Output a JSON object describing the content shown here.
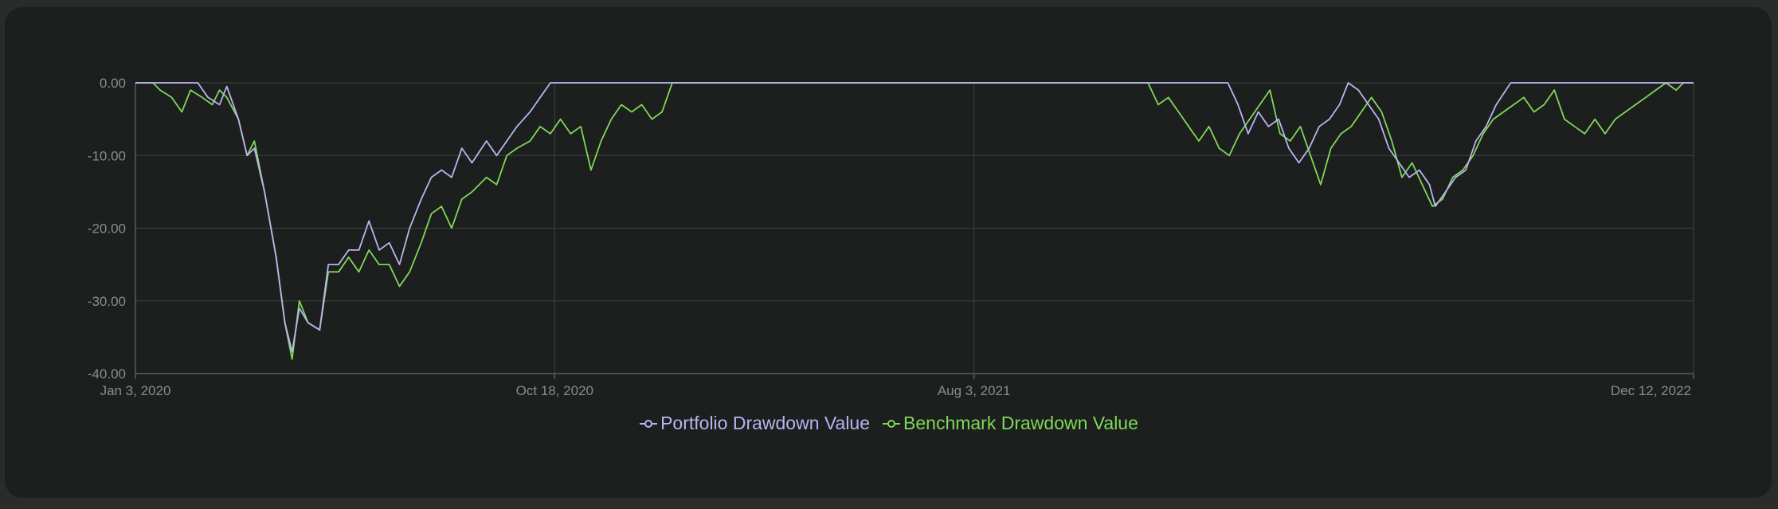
{
  "colors": {
    "background": "#1d1e1e",
    "grid": "#3a3c3c",
    "axis": "#5a5c5c",
    "portfolio": "#b9b4f0",
    "benchmark": "#7ed957",
    "tick_text": "#8a8c8c"
  },
  "legend_items": [
    {
      "name": "Portfolio Drawdown Value",
      "color": "#b9b4f0",
      "icon": "circle-line-marker-icon"
    },
    {
      "name": "Benchmark Drawdown Value",
      "color": "#7ed957",
      "icon": "circle-line-marker-icon"
    }
  ],
  "chart_data": {
    "type": "line",
    "title": "",
    "xlabel": "",
    "ylabel": "",
    "x_range": [
      "2020-01-03",
      "2022-12-12"
    ],
    "ylim": [
      -40,
      0
    ],
    "y_ticks": [
      "0.00",
      "-10.00",
      "-20.00",
      "-30.00",
      "-40.00"
    ],
    "x_ticks": [
      {
        "date": "2020-01-03",
        "label": "Jan 3, 2020"
      },
      {
        "date": "2020-10-18",
        "label": "Oct 18, 2020"
      },
      {
        "date": "2021-08-03",
        "label": "Aug 3, 2021"
      },
      {
        "date": "2022-12-12",
        "label": "Dec 12, 2022"
      }
    ],
    "grid": true,
    "legend_position": "bottom",
    "series": [
      {
        "name": "Portfolio Drawdown Value",
        "color": "#b9b4f0",
        "points": [
          [
            "2020-01-03",
            0
          ],
          [
            "2020-02-15",
            0
          ],
          [
            "2020-02-22",
            -2
          ],
          [
            "2020-03-01",
            -3
          ],
          [
            "2020-03-06",
            -0.5
          ],
          [
            "2020-03-14",
            -5
          ],
          [
            "2020-03-20",
            -10
          ],
          [
            "2020-03-25",
            -9
          ],
          [
            "2020-04-01",
            -15
          ],
          [
            "2020-04-09",
            -24
          ],
          [
            "2020-04-15",
            -33
          ],
          [
            "2020-04-20",
            -37
          ],
          [
            "2020-04-25",
            -31
          ],
          [
            "2020-05-01",
            -33
          ],
          [
            "2020-05-09",
            -34
          ],
          [
            "2020-05-15",
            -25
          ],
          [
            "2020-05-22",
            -25
          ],
          [
            "2020-05-29",
            -23
          ],
          [
            "2020-06-05",
            -23
          ],
          [
            "2020-06-12",
            -19
          ],
          [
            "2020-06-19",
            -23
          ],
          [
            "2020-06-26",
            -22
          ],
          [
            "2020-07-03",
            -25
          ],
          [
            "2020-07-10",
            -20
          ],
          [
            "2020-07-18",
            -16
          ],
          [
            "2020-07-25",
            -13
          ],
          [
            "2020-08-01",
            -12
          ],
          [
            "2020-08-08",
            -13
          ],
          [
            "2020-08-15",
            -9
          ],
          [
            "2020-08-22",
            -11
          ],
          [
            "2020-09-01",
            -8
          ],
          [
            "2020-09-08",
            -10
          ],
          [
            "2020-09-15",
            -8
          ],
          [
            "2020-09-22",
            -6
          ],
          [
            "2020-10-01",
            -4
          ],
          [
            "2020-10-08",
            -2
          ],
          [
            "2020-10-15",
            0
          ],
          [
            "2021-03-15",
            0
          ],
          [
            "2022-01-25",
            0
          ],
          [
            "2022-02-01",
            -3
          ],
          [
            "2022-02-08",
            -7
          ],
          [
            "2022-02-15",
            -4
          ],
          [
            "2022-02-22",
            -6
          ],
          [
            "2022-03-01",
            -5
          ],
          [
            "2022-03-08",
            -9
          ],
          [
            "2022-03-15",
            -11
          ],
          [
            "2022-03-22",
            -9
          ],
          [
            "2022-03-29",
            -6
          ],
          [
            "2022-04-05",
            -5
          ],
          [
            "2022-04-12",
            -3
          ],
          [
            "2022-04-18",
            0
          ],
          [
            "2022-04-25",
            -1
          ],
          [
            "2022-05-02",
            -3
          ],
          [
            "2022-05-09",
            -5
          ],
          [
            "2022-05-16",
            -9
          ],
          [
            "2022-05-23",
            -11
          ],
          [
            "2022-05-30",
            -13
          ],
          [
            "2022-06-06",
            -12
          ],
          [
            "2022-06-13",
            -14
          ],
          [
            "2022-06-17",
            -17
          ],
          [
            "2022-06-24",
            -15
          ],
          [
            "2022-07-01",
            -13
          ],
          [
            "2022-07-08",
            -12
          ],
          [
            "2022-07-15",
            -8
          ],
          [
            "2022-07-22",
            -6
          ],
          [
            "2022-07-29",
            -3
          ],
          [
            "2022-08-08",
            0
          ],
          [
            "2022-12-12",
            0
          ]
        ]
      },
      {
        "name": "Benchmark Drawdown Value",
        "color": "#7ed957",
        "points": [
          [
            "2020-01-03",
            0
          ],
          [
            "2020-01-15",
            0
          ],
          [
            "2020-01-20",
            -1
          ],
          [
            "2020-01-28",
            -2
          ],
          [
            "2020-02-04",
            -4
          ],
          [
            "2020-02-10",
            -1
          ],
          [
            "2020-02-18",
            -2
          ],
          [
            "2020-02-25",
            -3
          ],
          [
            "2020-03-01",
            -1
          ],
          [
            "2020-03-06",
            -2
          ],
          [
            "2020-03-14",
            -5
          ],
          [
            "2020-03-20",
            -10
          ],
          [
            "2020-03-25",
            -8
          ],
          [
            "2020-04-01",
            -15
          ],
          [
            "2020-04-09",
            -24
          ],
          [
            "2020-04-15",
            -33
          ],
          [
            "2020-04-20",
            -38
          ],
          [
            "2020-04-25",
            -30
          ],
          [
            "2020-05-01",
            -33
          ],
          [
            "2020-05-09",
            -34
          ],
          [
            "2020-05-15",
            -26
          ],
          [
            "2020-05-22",
            -26
          ],
          [
            "2020-05-29",
            -24
          ],
          [
            "2020-06-05",
            -26
          ],
          [
            "2020-06-12",
            -23
          ],
          [
            "2020-06-19",
            -25
          ],
          [
            "2020-06-26",
            -25
          ],
          [
            "2020-07-03",
            -28
          ],
          [
            "2020-07-10",
            -26
          ],
          [
            "2020-07-18",
            -22
          ],
          [
            "2020-07-25",
            -18
          ],
          [
            "2020-08-01",
            -17
          ],
          [
            "2020-08-08",
            -20
          ],
          [
            "2020-08-15",
            -16
          ],
          [
            "2020-08-22",
            -15
          ],
          [
            "2020-09-01",
            -13
          ],
          [
            "2020-09-08",
            -14
          ],
          [
            "2020-09-15",
            -10
          ],
          [
            "2020-09-22",
            -9
          ],
          [
            "2020-10-01",
            -8
          ],
          [
            "2020-10-08",
            -6
          ],
          [
            "2020-10-15",
            -7
          ],
          [
            "2020-10-22",
            -5
          ],
          [
            "2020-10-29",
            -7
          ],
          [
            "2020-11-05",
            -6
          ],
          [
            "2020-11-12",
            -12
          ],
          [
            "2020-11-19",
            -8
          ],
          [
            "2020-11-26",
            -5
          ],
          [
            "2020-12-03",
            -3
          ],
          [
            "2020-12-10",
            -4
          ],
          [
            "2020-12-17",
            -3
          ],
          [
            "2020-12-24",
            -5
          ],
          [
            "2020-12-31",
            -4
          ],
          [
            "2021-01-07",
            0
          ],
          [
            "2021-12-01",
            0
          ],
          [
            "2021-12-08",
            -3
          ],
          [
            "2021-12-15",
            -2
          ],
          [
            "2021-12-22",
            -4
          ],
          [
            "2021-12-29",
            -6
          ],
          [
            "2022-01-05",
            -8
          ],
          [
            "2022-01-12",
            -6
          ],
          [
            "2022-01-19",
            -9
          ],
          [
            "2022-01-26",
            -10
          ],
          [
            "2022-02-02",
            -7
          ],
          [
            "2022-02-09",
            -5
          ],
          [
            "2022-02-16",
            -3
          ],
          [
            "2022-02-23",
            -1
          ],
          [
            "2022-03-02",
            -7
          ],
          [
            "2022-03-09",
            -8
          ],
          [
            "2022-03-16",
            -6
          ],
          [
            "2022-03-23",
            -10
          ],
          [
            "2022-03-30",
            -14
          ],
          [
            "2022-04-06",
            -9
          ],
          [
            "2022-04-13",
            -7
          ],
          [
            "2022-04-20",
            -6
          ],
          [
            "2022-04-27",
            -4
          ],
          [
            "2022-05-04",
            -2
          ],
          [
            "2022-05-11",
            -4
          ],
          [
            "2022-05-18",
            -8
          ],
          [
            "2022-05-25",
            -13
          ],
          [
            "2022-06-01",
            -11
          ],
          [
            "2022-06-08",
            -14
          ],
          [
            "2022-06-15",
            -17
          ],
          [
            "2022-06-22",
            -16
          ],
          [
            "2022-06-29",
            -13
          ],
          [
            "2022-07-06",
            -12
          ],
          [
            "2022-07-13",
            -10
          ],
          [
            "2022-07-20",
            -7
          ],
          [
            "2022-07-27",
            -5
          ],
          [
            "2022-08-03",
            -4
          ],
          [
            "2022-08-10",
            -3
          ],
          [
            "2022-08-17",
            -2
          ],
          [
            "2022-08-24",
            -4
          ],
          [
            "2022-08-31",
            -3
          ],
          [
            "2022-09-07",
            -1
          ],
          [
            "2022-09-14",
            -5
          ],
          [
            "2022-09-21",
            -6
          ],
          [
            "2022-09-28",
            -7
          ],
          [
            "2022-10-05",
            -5
          ],
          [
            "2022-10-12",
            -7
          ],
          [
            "2022-10-19",
            -5
          ],
          [
            "2022-10-26",
            -4
          ],
          [
            "2022-11-02",
            -3
          ],
          [
            "2022-11-09",
            -2
          ],
          [
            "2022-11-16",
            -1
          ],
          [
            "2022-11-23",
            0
          ],
          [
            "2022-11-30",
            -1
          ],
          [
            "2022-12-05",
            0
          ],
          [
            "2022-12-12",
            0
          ]
        ]
      }
    ]
  }
}
